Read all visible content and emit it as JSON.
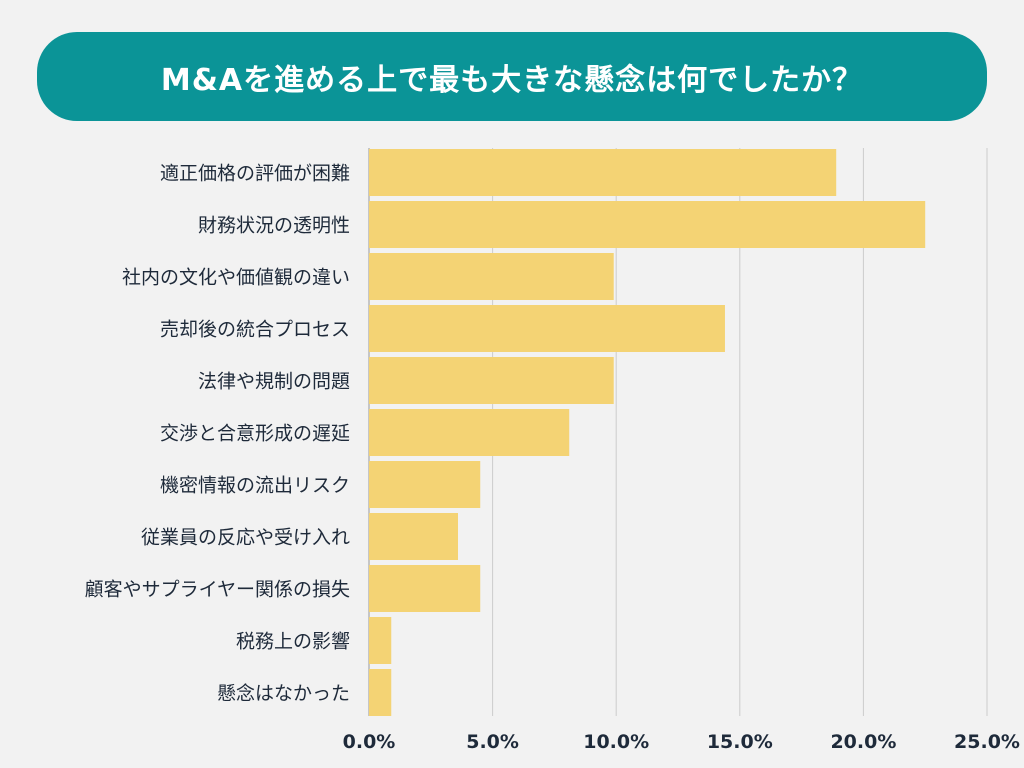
{
  "chart_data": {
    "type": "bar",
    "orientation": "horizontal",
    "title": "M&Aを進める上で最も大きな懸念は何でしたか？",
    "categories": [
      "適正価格の評価が困難",
      "財務状況の透明性",
      "社内の文化や価値観の違い",
      "売却後の統合プロセス",
      "法律や規制の問題",
      "交渉と合意形成の遅延",
      "機密情報の流出リスク",
      "従業員の反応や受け入れ",
      "顧客やサプライヤー関係の損失",
      "税務上の影響",
      "懸念はなかった"
    ],
    "values": [
      18.9,
      22.5,
      9.9,
      14.4,
      9.9,
      8.1,
      4.5,
      3.6,
      4.5,
      0.9,
      0.9
    ],
    "unit": "%",
    "xlim": [
      0,
      25
    ],
    "xticks": [
      "0.0%",
      "5.0%",
      "10.0%",
      "15.0%",
      "20.0%",
      "25.0%"
    ],
    "grid": true,
    "colors": {
      "bar": "#f4d374",
      "title_bg": "#0b9497",
      "grid": "#cccccc",
      "background": "#f2f2f2"
    }
  }
}
